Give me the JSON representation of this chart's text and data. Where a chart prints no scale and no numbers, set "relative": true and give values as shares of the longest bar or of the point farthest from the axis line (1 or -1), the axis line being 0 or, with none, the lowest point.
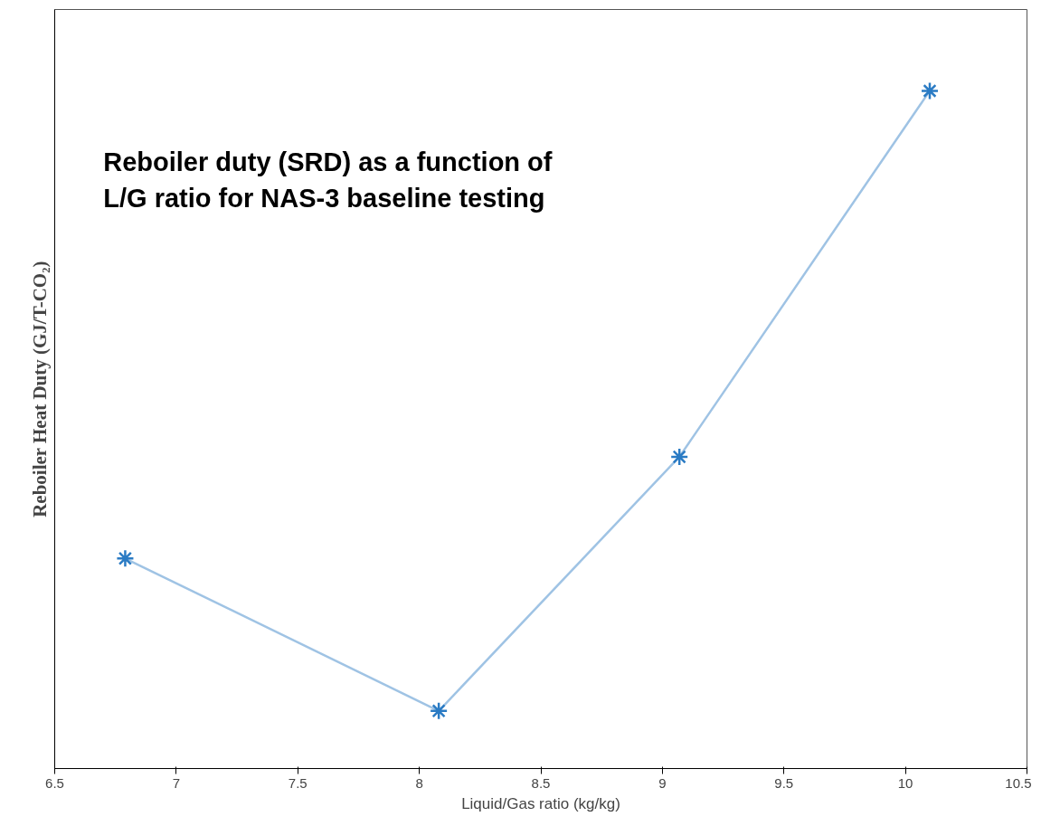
{
  "chart_data": {
    "type": "line",
    "title": "Reboiler duty (SRD) as a function of\nL/G ratio for NAS-3 baseline testing",
    "xlabel": "Liquid/Gas ratio (kg/kg)",
    "ylabel": "Reboiler Heat Duty (GJ/T-CO₂)",
    "relative": true,
    "x": [
      6.79,
      8.08,
      9.07,
      10.1
    ],
    "series": [
      {
        "color": "#2a7bc4",
        "values": [
          0.31,
          0.085,
          0.46,
          1.0
        ]
      }
    ],
    "xlim": [
      6.5,
      10.5
    ],
    "xticks": [
      6.5,
      7,
      7.5,
      8,
      8.5,
      9,
      9.5,
      10,
      10.5
    ],
    "marker": "cross",
    "line_style": "solid",
    "grid": false
  }
}
